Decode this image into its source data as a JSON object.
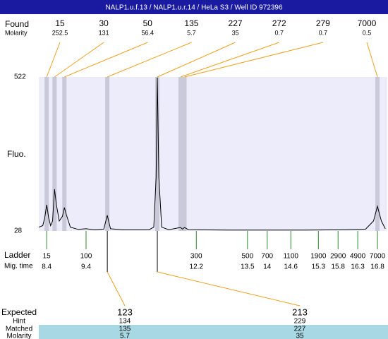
{
  "header": {
    "title": "NALP1.u.f.13 / NALP1.u.r.14 / HeLa S3 / Well ID 972396"
  },
  "found": {
    "label": "Found",
    "molarity_label": "Molarity",
    "peaks": [
      {
        "size": 15,
        "molarity": 252.5,
        "time": 8.4
      },
      {
        "size": 30,
        "molarity": 131,
        "time": 8.6
      },
      {
        "size": 50,
        "molarity": 56.4,
        "time": 8.85
      },
      {
        "size": 135,
        "molarity": 5.7,
        "time": 9.94
      },
      {
        "size": 227,
        "molarity": 35,
        "time": 11.21
      },
      {
        "size": 272,
        "molarity": 0.7,
        "time": 11.8
      },
      {
        "size": 279,
        "molarity": 0.7,
        "time": 11.9
      },
      {
        "size": 7000,
        "molarity": 0.5,
        "time": 16.8
      }
    ]
  },
  "plot": {
    "y_label": "Fluo.",
    "ylim": [
      28,
      522
    ],
    "yticks": [
      522,
      28
    ],
    "xlim": [
      8.2,
      17.05
    ],
    "trace": {
      "x": [
        8.2,
        8.3,
        8.35,
        8.4,
        8.45,
        8.5,
        8.55,
        8.6,
        8.65,
        8.72,
        8.8,
        8.85,
        8.9,
        9.0,
        9.2,
        9.4,
        9.6,
        9.85,
        9.94,
        10.02,
        10.3,
        11.0,
        11.12,
        11.18,
        11.21,
        11.25,
        11.32,
        11.5,
        11.8,
        11.85,
        11.9,
        12.0,
        13.0,
        14.0,
        15.0,
        16.0,
        16.5,
        16.7,
        16.8,
        16.9,
        17.0
      ],
      "y": [
        40,
        45,
        70,
        112,
        70,
        45,
        60,
        162,
        110,
        60,
        75,
        103,
        80,
        40,
        33,
        35,
        32,
        34,
        78,
        35,
        32,
        32,
        40,
        200,
        520,
        200,
        40,
        32,
        39,
        34,
        39,
        32,
        31,
        31,
        31,
        32,
        34,
        60,
        107,
        60,
        35
      ]
    }
  },
  "ladder": {
    "label": "Ladder",
    "time_label": "Mig. time",
    "sizes": [
      15,
      100,
      300,
      500,
      700,
      1100,
      1900,
      2900,
      4900,
      7000
    ],
    "times": [
      8.4,
      9.4,
      12.2,
      13.5,
      14,
      14.6,
      15.3,
      15.8,
      16.3,
      16.8
    ]
  },
  "expected": {
    "labels": [
      "Expected",
      "Hint",
      "Matched",
      "Molarity"
    ],
    "columns": [
      {
        "expected": 123,
        "hint": 134,
        "matched": 135,
        "molarity": 5.7
      },
      {
        "expected": 213,
        "hint": 229,
        "matched": 227,
        "molarity": 35
      }
    ]
  }
}
